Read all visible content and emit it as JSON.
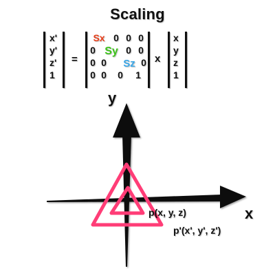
{
  "title": "Scaling",
  "left_vector": [
    "x'",
    "y'",
    "z'",
    "1"
  ],
  "equals": "=",
  "matrix": [
    [
      "Sx",
      "0",
      "0",
      "0"
    ],
    [
      "0",
      "Sy",
      "0",
      "0"
    ],
    [
      "0",
      "0",
      "Sz",
      "0"
    ],
    [
      "0",
      "0",
      "0",
      "1"
    ]
  ],
  "times": "x",
  "right_vector": [
    "x",
    "y",
    "z",
    "1"
  ],
  "axes": {
    "y_label": "y",
    "x_label": "x"
  },
  "points": {
    "inner": "p(x, y, z)",
    "outer": "p'(x', y', z')"
  },
  "colors": {
    "sx": "#e8401c",
    "sy": "#3cc21a",
    "sz": "#3aa7e8",
    "triangle": "#ff3d77",
    "axis": "#111111"
  }
}
